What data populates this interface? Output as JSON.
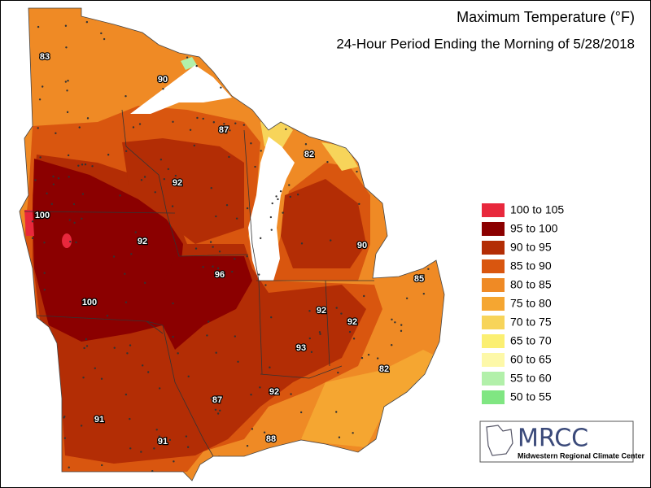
{
  "title": "Maximum Temperature (°F)",
  "subtitle": "24-Hour Period Ending the Morning of 5/28/2018",
  "legend": [
    {
      "label": "100 to 105",
      "color": "#e8283c"
    },
    {
      "label": "95 to 100",
      "color": "#8b0000"
    },
    {
      "label": "90 to 95",
      "color": "#b32d05"
    },
    {
      "label": "85 to 90",
      "color": "#d9560f"
    },
    {
      "label": "80 to 85",
      "color": "#ef8a25"
    },
    {
      "label": "75 to 80",
      "color": "#f5a631"
    },
    {
      "label": "70 to 75",
      "color": "#f7d45a"
    },
    {
      "label": "65 to 70",
      "color": "#fbef72"
    },
    {
      "label": "60 to 65",
      "color": "#fdf8a8"
    },
    {
      "label": "55 to 60",
      "color": "#b2f0aa"
    },
    {
      "label": "50 to 55",
      "color": "#80e682"
    }
  ],
  "labels": [
    "83",
    "90",
    "87",
    "82",
    "92",
    "100",
    "92",
    "90",
    "96",
    "85",
    "100",
    "92",
    "92",
    "93",
    "82",
    "92",
    "87",
    "91",
    "88",
    "91"
  ],
  "logo": {
    "name": "MRCC",
    "subtitle": "Midwestern Regional Climate Center"
  }
}
